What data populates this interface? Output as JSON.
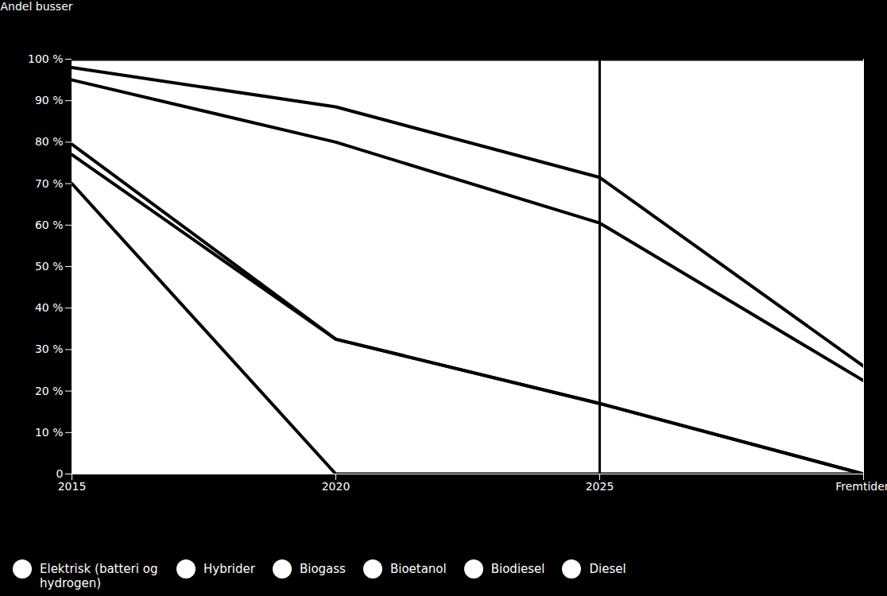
{
  "chart_data": {
    "type": "line",
    "stacked": true,
    "y_label": "Andel busser",
    "x": [
      "2015",
      "2020",
      "2025",
      "Fremtiden"
    ],
    "ylim": [
      0,
      100
    ],
    "yticks": [
      {
        "value": 0,
        "label": "0"
      },
      {
        "value": 10,
        "label": "10 %"
      },
      {
        "value": 20,
        "label": "20 %"
      },
      {
        "value": 30,
        "label": "30 %"
      },
      {
        "value": 40,
        "label": "40 %"
      },
      {
        "value": 50,
        "label": "50 %"
      },
      {
        "value": 60,
        "label": "60 %"
      },
      {
        "value": 70,
        "label": "70 %"
      },
      {
        "value": 80,
        "label": "80 %"
      },
      {
        "value": 90,
        "label": "90 %"
      },
      {
        "value": 100,
        "label": "100 %"
      }
    ],
    "color": "#000000",
    "legend": "bottom",
    "series": [
      {
        "name": "Elektrisk (batteri og hydrogen)",
        "values": [
          2,
          11.5,
          28.5,
          74
        ]
      },
      {
        "name": "Hybrider",
        "values": [
          3,
          8.5,
          11,
          3.5
        ]
      },
      {
        "name": "Biogass",
        "values": [
          15.5,
          47.5,
          43.5,
          22.5
        ]
      },
      {
        "name": "Bioetanol",
        "values": [
          2.5,
          0,
          0,
          0
        ]
      },
      {
        "name": "Biodiesel",
        "values": [
          7,
          32.5,
          17,
          0
        ]
      },
      {
        "name": "Diesel",
        "values": [
          70,
          0,
          0,
          0
        ]
      }
    ]
  }
}
